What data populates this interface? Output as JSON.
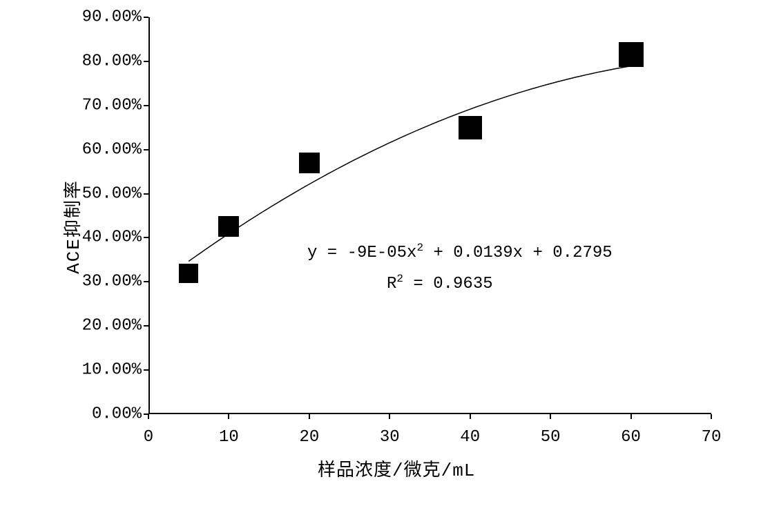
{
  "chart": {
    "type": "scatter",
    "background_color": "#ffffff",
    "axis_color": "#000000",
    "marker_color": "#000000",
    "line_color": "#000000",
    "line_width": 1.5,
    "marker_size": 30,
    "font_family": "Courier New",
    "label_fontsize": 24,
    "axis_title_fontsize": 26,
    "xlim": [
      0,
      70
    ],
    "ylim": [
      0,
      0.9
    ],
    "x_ticks": [
      0,
      10,
      20,
      30,
      40,
      50,
      60,
      70
    ],
    "y_ticks": [
      0.0,
      0.1,
      0.2,
      0.3,
      0.4,
      0.5,
      0.6,
      0.7,
      0.8,
      0.9
    ],
    "y_tick_labels": [
      "0.00%",
      "10.00%",
      "20.00%",
      "30.00%",
      "40.00%",
      "50.00%",
      "60.00%",
      "70.00%",
      "80.00%",
      "90.00%"
    ],
    "x_axis_label": "样品浓度/微克/mL",
    "y_axis_label": "ACE抑制率",
    "data_points": [
      {
        "x": 5,
        "y": 0.32,
        "size": 28
      },
      {
        "x": 10,
        "y": 0.425,
        "size": 30
      },
      {
        "x": 20,
        "y": 0.57,
        "size": 30
      },
      {
        "x": 40,
        "y": 0.65,
        "size": 34
      },
      {
        "x": 60,
        "y": 0.815,
        "size": 36
      }
    ],
    "trendline": {
      "equation_text": "y = -9E-05x² + 0.0139x + 0.2795",
      "r_squared_text": "R² = 0.9635",
      "a": -9e-05,
      "b": 0.0139,
      "c": 0.2795,
      "x_start": 5,
      "x_end": 60
    }
  }
}
